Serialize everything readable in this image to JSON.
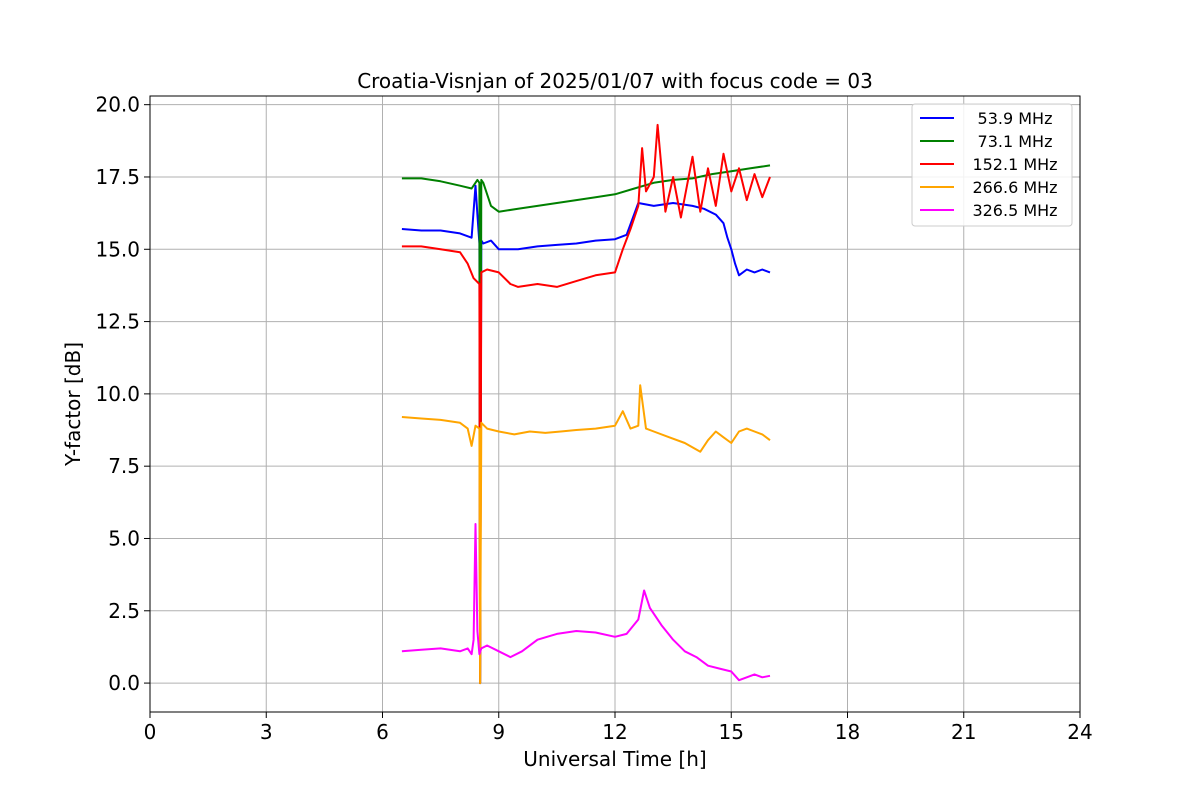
{
  "chart_data": {
    "type": "line",
    "title": "Croatia-Visnjan of 2025/01/07 with focus code = 03",
    "xlabel": "Universal Time [h]",
    "ylabel": "Y-factor [dB]",
    "xlim": [
      0,
      24
    ],
    "ylim": [
      -1.0,
      20.3
    ],
    "xticks": [
      0,
      3,
      6,
      9,
      12,
      15,
      18,
      21,
      24
    ],
    "yticks": [
      0.0,
      2.5,
      5.0,
      7.5,
      10.0,
      12.5,
      15.0,
      17.5,
      20.0
    ],
    "xtick_labels": [
      "0",
      "3",
      "6",
      "9",
      "12",
      "15",
      "18",
      "21",
      "24"
    ],
    "ytick_labels": [
      "0.0",
      "2.5",
      "5.0",
      "7.5",
      "10.0",
      "12.5",
      "15.0",
      "17.5",
      "20.0"
    ],
    "grid": true,
    "legend_position": "top-right",
    "series": [
      {
        "name": "53.9 MHz",
        "color": "#0000ff",
        "x": [
          6.5,
          7.0,
          7.5,
          8.0,
          8.3,
          8.4,
          8.45,
          8.5,
          8.52,
          8.55,
          8.6,
          8.8,
          9.0,
          9.5,
          10.0,
          10.5,
          11.0,
          11.5,
          12.0,
          12.3,
          12.6,
          13.0,
          13.5,
          14.0,
          14.3,
          14.6,
          14.8,
          14.9,
          15.0,
          15.1,
          15.2,
          15.4,
          15.6,
          15.8,
          16.0
        ],
        "y": [
          15.7,
          15.65,
          15.65,
          15.55,
          15.4,
          17.2,
          16.2,
          15.2,
          0.0,
          15.3,
          15.2,
          15.3,
          15.0,
          15.0,
          15.1,
          15.15,
          15.2,
          15.3,
          15.35,
          15.5,
          16.6,
          16.5,
          16.6,
          16.5,
          16.4,
          16.2,
          15.9,
          15.4,
          15.0,
          14.5,
          14.1,
          14.3,
          14.2,
          14.3,
          14.2
        ]
      },
      {
        "name": "73.1 MHz",
        "color": "#008000",
        "x": [
          6.5,
          7.0,
          7.5,
          8.0,
          8.3,
          8.45,
          8.5,
          8.52,
          8.55,
          8.6,
          8.8,
          9.0,
          9.5,
          10.0,
          10.5,
          11.0,
          11.5,
          12.0,
          12.5,
          13.0,
          13.5,
          14.0,
          14.5,
          15.0,
          15.5,
          16.0
        ],
        "y": [
          17.45,
          17.45,
          17.35,
          17.2,
          17.1,
          17.4,
          17.3,
          0.0,
          17.4,
          17.3,
          16.5,
          16.3,
          16.4,
          16.5,
          16.6,
          16.7,
          16.8,
          16.9,
          17.1,
          17.3,
          17.4,
          17.45,
          17.6,
          17.7,
          17.8,
          17.9
        ]
      },
      {
        "name": "152.1 MHz",
        "color": "#ff0000",
        "x": [
          6.5,
          7.0,
          7.5,
          8.0,
          8.2,
          8.35,
          8.5,
          8.52,
          8.55,
          8.7,
          9.0,
          9.3,
          9.5,
          10.0,
          10.5,
          11.0,
          11.5,
          12.0,
          12.2,
          12.4,
          12.6,
          12.7,
          12.8,
          13.0,
          13.1,
          13.3,
          13.5,
          13.7,
          14.0,
          14.2,
          14.4,
          14.6,
          14.8,
          15.0,
          15.2,
          15.4,
          15.6,
          15.8,
          16.0
        ],
        "y": [
          15.1,
          15.1,
          15.0,
          14.9,
          14.5,
          14.0,
          13.8,
          0.0,
          14.2,
          14.3,
          14.2,
          13.8,
          13.7,
          13.8,
          13.7,
          13.9,
          14.1,
          14.2,
          15.0,
          15.7,
          16.5,
          18.5,
          17.0,
          17.5,
          19.3,
          16.3,
          17.5,
          16.1,
          18.2,
          16.3,
          17.8,
          16.5,
          18.3,
          17.0,
          17.8,
          16.7,
          17.6,
          16.8,
          17.5
        ]
      },
      {
        "name": "266.6 MHz",
        "color": "#ffa500",
        "x": [
          6.5,
          7.0,
          7.5,
          8.0,
          8.2,
          8.3,
          8.4,
          8.5,
          8.52,
          8.55,
          8.7,
          9.0,
          9.4,
          9.8,
          10.2,
          10.6,
          11.0,
          11.5,
          12.0,
          12.2,
          12.4,
          12.6,
          12.65,
          12.8,
          13.0,
          13.4,
          13.8,
          14.2,
          14.4,
          14.6,
          14.8,
          15.0,
          15.2,
          15.4,
          15.6,
          15.8,
          16.0
        ],
        "y": [
          9.2,
          9.15,
          9.1,
          9.0,
          8.8,
          8.2,
          8.9,
          8.8,
          0.0,
          9.0,
          8.8,
          8.7,
          8.6,
          8.7,
          8.65,
          8.7,
          8.75,
          8.8,
          8.9,
          9.4,
          8.8,
          8.9,
          10.3,
          8.8,
          8.7,
          8.5,
          8.3,
          8.0,
          8.4,
          8.7,
          8.5,
          8.3,
          8.7,
          8.8,
          8.7,
          8.6,
          8.4
        ]
      },
      {
        "name": "326.5 MHz",
        "color": "#ff00ff",
        "x": [
          6.5,
          7.0,
          7.5,
          8.0,
          8.2,
          8.3,
          8.35,
          8.4,
          8.45,
          8.5,
          8.55,
          8.7,
          9.0,
          9.3,
          9.6,
          10.0,
          10.5,
          11.0,
          11.5,
          12.0,
          12.3,
          12.6,
          12.75,
          12.9,
          13.2,
          13.5,
          13.8,
          14.1,
          14.4,
          14.7,
          15.0,
          15.2,
          15.4,
          15.6,
          15.8,
          16.0
        ],
        "y": [
          1.1,
          1.15,
          1.2,
          1.1,
          1.2,
          1.0,
          1.5,
          5.5,
          1.8,
          1.0,
          1.2,
          1.3,
          1.1,
          0.9,
          1.1,
          1.5,
          1.7,
          1.8,
          1.75,
          1.6,
          1.7,
          2.2,
          3.2,
          2.6,
          2.0,
          1.5,
          1.1,
          0.9,
          0.6,
          0.5,
          0.4,
          0.1,
          0.2,
          0.3,
          0.2,
          0.25
        ]
      }
    ]
  }
}
